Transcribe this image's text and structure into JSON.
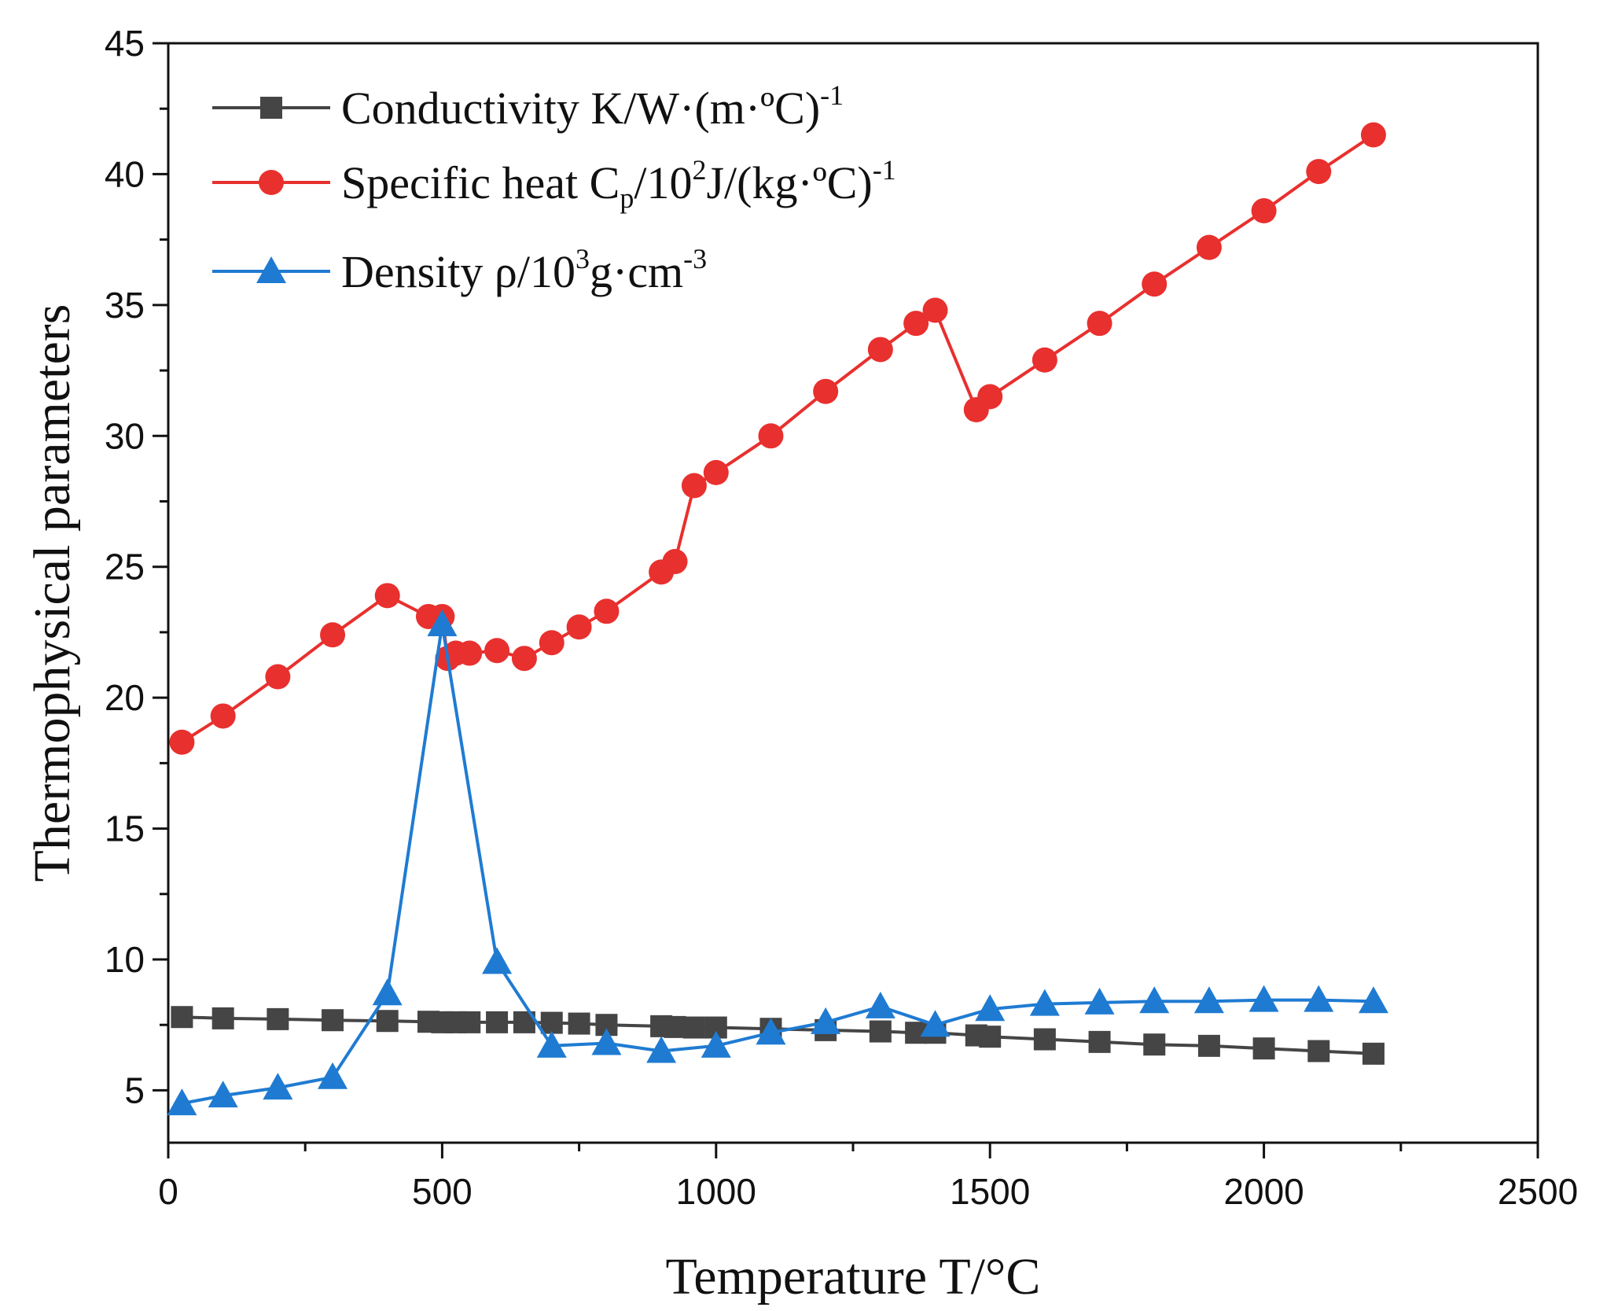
{
  "chart_data": {
    "type": "line",
    "title": "",
    "xlabel": "Temperature T/°C",
    "ylabel": "Thermophysical parameters",
    "xlim": [
      0,
      2500
    ],
    "ylim": [
      3,
      45
    ],
    "x_ticks": [
      0,
      500,
      1000,
      1500,
      2000,
      2500
    ],
    "x_minor_ticks": [
      250,
      750,
      1250,
      1750,
      2250
    ],
    "y_ticks": [
      5,
      10,
      15,
      20,
      25,
      30,
      35,
      40,
      45
    ],
    "y_minor_ticks": [
      7.5,
      12.5,
      17.5,
      22.5,
      27.5,
      32.5,
      37.5,
      42.5
    ],
    "grid": false,
    "legend_position": "top-left",
    "series": [
      {
        "name": "Conductivity K/W·(m·ºC)-1",
        "legend_main": "Conductivity K/W·(m·ºC)",
        "legend_sup": "-1",
        "color": "#454545",
        "marker": "square",
        "x": [
          25,
          100,
          200,
          300,
          400,
          475,
          500,
          525,
          550,
          600,
          650,
          700,
          750,
          800,
          900,
          925,
          960,
          1000,
          1100,
          1200,
          1300,
          1365,
          1400,
          1475,
          1500,
          1600,
          1700,
          1800,
          1900,
          2000,
          2100,
          2200
        ],
        "values": [
          7.8,
          7.75,
          7.72,
          7.68,
          7.65,
          7.62,
          7.6,
          7.6,
          7.6,
          7.6,
          7.6,
          7.58,
          7.55,
          7.5,
          7.45,
          7.42,
          7.4,
          7.4,
          7.35,
          7.3,
          7.25,
          7.2,
          7.2,
          7.1,
          7.05,
          6.95,
          6.85,
          6.75,
          6.7,
          6.6,
          6.5,
          6.4
        ]
      },
      {
        "name": "Specific heat Cp/102J/(kg·ºC)-1",
        "legend_part1": "Specific heat C",
        "legend_sub": "p",
        "legend_part2": "/10",
        "legend_sup1": "2",
        "legend_part3": "J/(kg·ºC)",
        "legend_sup2": "-1",
        "color": "#e8302e",
        "marker": "circle",
        "x": [
          25,
          100,
          200,
          300,
          400,
          475,
          500,
          510,
          525,
          550,
          600,
          650,
          700,
          750,
          800,
          900,
          925,
          960,
          1000,
          1100,
          1200,
          1300,
          1365,
          1400,
          1475,
          1500,
          1600,
          1700,
          1800,
          1900,
          2000,
          2100,
          2200
        ],
        "values": [
          18.3,
          19.3,
          20.8,
          22.4,
          23.9,
          23.1,
          23.1,
          21.5,
          21.7,
          21.7,
          21.8,
          21.5,
          22.1,
          22.7,
          23.3,
          24.8,
          25.2,
          28.1,
          28.6,
          30.0,
          31.7,
          33.3,
          34.3,
          34.8,
          31.0,
          31.5,
          32.9,
          34.3,
          35.8,
          37.2,
          38.6,
          40.1,
          41.5
        ]
      },
      {
        "name": "Density ρ/103g·cm-3",
        "legend_part1": "Density ρ/10",
        "legend_sup1": "3",
        "legend_part2": "g·cm",
        "legend_sup2": "-3",
        "color": "#1f7bd2",
        "marker": "triangle",
        "x": [
          25,
          100,
          200,
          300,
          400,
          500,
          600,
          700,
          800,
          900,
          1000,
          1100,
          1200,
          1300,
          1400,
          1500,
          1600,
          1700,
          1800,
          1900,
          2000,
          2100,
          2200
        ],
        "values": [
          4.5,
          4.8,
          5.1,
          5.5,
          8.7,
          22.8,
          9.9,
          6.7,
          6.8,
          6.5,
          6.7,
          7.2,
          7.6,
          8.2,
          7.5,
          8.1,
          8.3,
          8.35,
          8.4,
          8.4,
          8.45,
          8.45,
          8.4
        ]
      }
    ]
  }
}
